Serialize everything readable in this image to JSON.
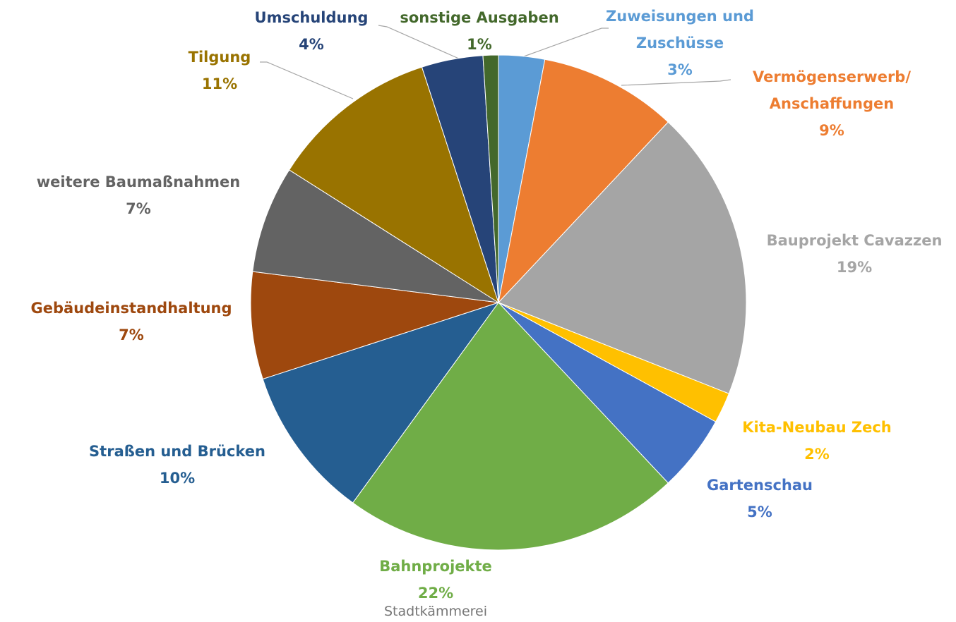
{
  "chart_data": {
    "type": "pie",
    "categories": [
      "Zuweisungen und Zuschüsse",
      "Vermögenserwerb/ Anschaffungen",
      "Bauprojekt Cavazzen",
      "Kita-Neubau Zech",
      "Gartenschau",
      "Bahnprojekte",
      "Straßen und Brücken",
      "Gebäudeinstandhaltung",
      "weitere Baumaßnahmen",
      "Tilgung",
      "Umschuldung",
      "sonstige Ausgaben"
    ],
    "values": [
      3,
      9,
      19,
      2,
      5,
      22,
      10,
      7,
      7,
      11,
      4,
      1
    ],
    "value_labels": [
      "3%",
      "9%",
      "19%",
      "2%",
      "5%",
      "22%",
      "10%",
      "7%",
      "7%",
      "11%",
      "4%",
      "1%"
    ],
    "colors": [
      "#5b9bd5",
      "#ed7d31",
      "#a5a5a5",
      "#ffc000",
      "#4472c4",
      "#70ad47",
      "#255e91",
      "#9e480e",
      "#636363",
      "#997300",
      "#264478",
      "#43682b"
    ],
    "caption": "Stadtkämmerei"
  }
}
